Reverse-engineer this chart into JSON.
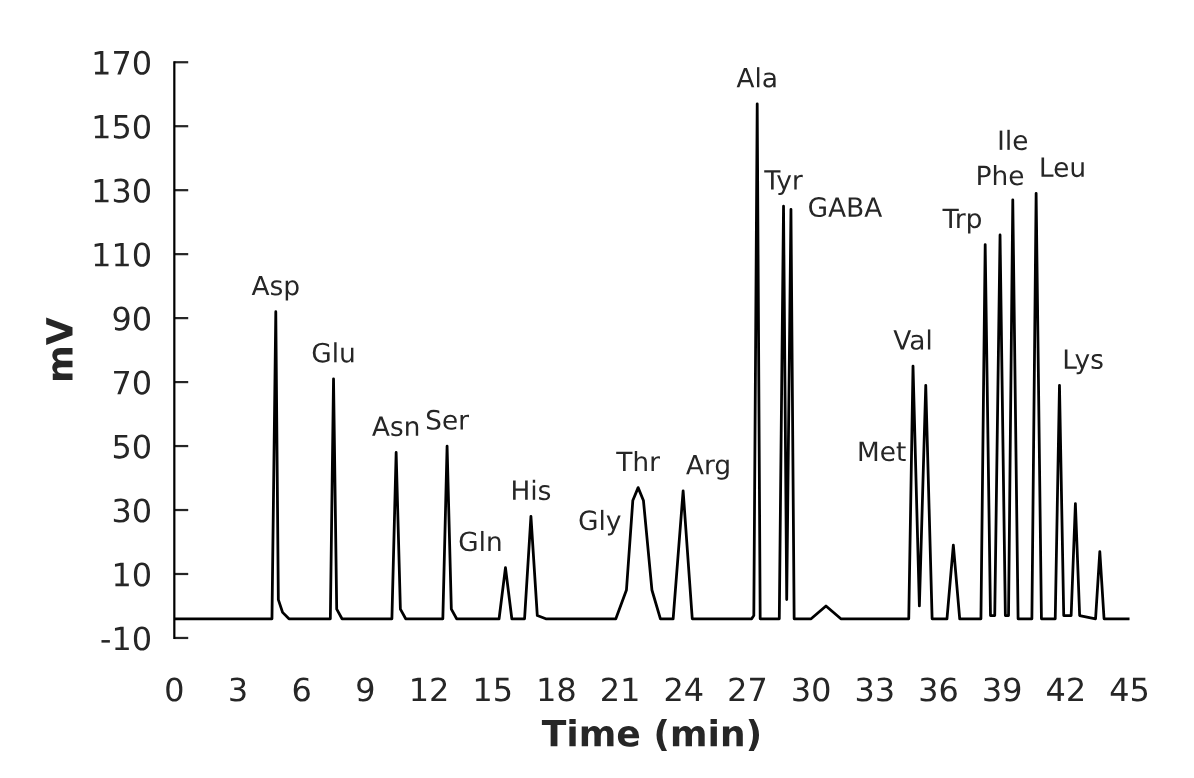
{
  "chart_data": {
    "type": "line",
    "xlabel": "Time (min)",
    "ylabel": "mV",
    "xlim": [
      0,
      45
    ],
    "xticks": [
      0,
      3,
      6,
      9,
      12,
      15,
      18,
      21,
      24,
      27,
      30,
      33,
      36,
      39,
      42,
      45
    ],
    "ylim": [
      -10,
      170
    ],
    "yticks": [
      -10,
      10,
      30,
      50,
      70,
      90,
      110,
      130,
      150,
      170
    ],
    "grid": false,
    "marker": "none",
    "line_style": "solid",
    "series": [
      {
        "color": "#000000",
        "x": [
          0,
          4.6,
          4.78,
          4.9,
          5.1,
          5.4,
          7.35,
          7.5,
          7.65,
          7.9,
          10.25,
          10.45,
          10.65,
          10.9,
          12.65,
          12.85,
          13.05,
          13.3,
          15.3,
          15.6,
          15.9,
          16.5,
          16.8,
          17.1,
          17.5,
          20.8,
          21.3,
          21.6,
          21.85,
          22.1,
          22.5,
          22.9,
          23.5,
          23.97,
          24.4,
          27.2,
          27.3,
          27.46,
          27.6,
          28.5,
          28.7,
          28.85,
          29.05,
          29.2,
          30.0,
          30.7,
          31.4,
          34.6,
          34.8,
          35.1,
          35.4,
          35.7,
          36.4,
          36.7,
          37.0,
          38.0,
          38.2,
          38.45,
          38.65,
          38.9,
          39.15,
          39.3,
          39.5,
          39.75,
          40.4,
          40.6,
          40.85,
          41.5,
          41.7,
          41.9,
          42.25,
          42.45,
          42.65,
          43.4,
          43.6,
          43.8,
          45
        ],
        "values": [
          -4,
          -4,
          92,
          2,
          -2,
          -4,
          -4,
          71,
          -1,
          -4,
          -4,
          48,
          -1,
          -4,
          -4,
          50,
          -1,
          -4,
          -4,
          12,
          -4,
          -4,
          28,
          -3,
          -4,
          -4,
          5,
          33,
          37,
          33,
          5,
          -4,
          -4,
          36,
          -4,
          -4,
          -3,
          157,
          -4,
          -4,
          125,
          2,
          124,
          -4,
          -4,
          0,
          -4,
          -4,
          75,
          0,
          69,
          -4,
          -4,
          19,
          -4,
          -4,
          113,
          -3,
          -3,
          116,
          -3,
          -3,
          127,
          -4,
          -4,
          129,
          -4,
          -4,
          69,
          -3,
          -3,
          32,
          -3,
          -4,
          17,
          -4,
          -4
        ]
      }
    ],
    "annotations": [
      {
        "text": "Asp",
        "x": 4.78,
        "y": 92
      },
      {
        "text": "Glu",
        "x": 7.5,
        "y": 71
      },
      {
        "text": "Asn",
        "x": 10.45,
        "y": 48
      },
      {
        "text": "Ser",
        "x": 12.85,
        "y": 50
      },
      {
        "text": "Gln",
        "x": 15.6,
        "y": 12
      },
      {
        "text": "His",
        "x": 16.8,
        "y": 28
      },
      {
        "text": "Thr",
        "x": 21.85,
        "y": 37
      },
      {
        "text": "Gly",
        "x": 21.85,
        "y": 37
      },
      {
        "text": "Arg",
        "x": 23.97,
        "y": 36
      },
      {
        "text": "Ala",
        "x": 27.46,
        "y": 157
      },
      {
        "text": "Tyr",
        "x": 28.7,
        "y": 125
      },
      {
        "text": "GABA",
        "x": 29.05,
        "y": 124
      },
      {
        "text": "Val",
        "x": 34.8,
        "y": 75
      },
      {
        "text": "Met",
        "x": 35.4,
        "y": 69
      },
      {
        "text": "Trp",
        "x": 38.2,
        "y": 113
      },
      {
        "text": "Phe",
        "x": 38.9,
        "y": 116
      },
      {
        "text": "Ile",
        "x": 39.5,
        "y": 127
      },
      {
        "text": "Leu",
        "x": 40.6,
        "y": 129
      },
      {
        "text": "Lys",
        "x": 41.7,
        "y": 69
      }
    ]
  }
}
